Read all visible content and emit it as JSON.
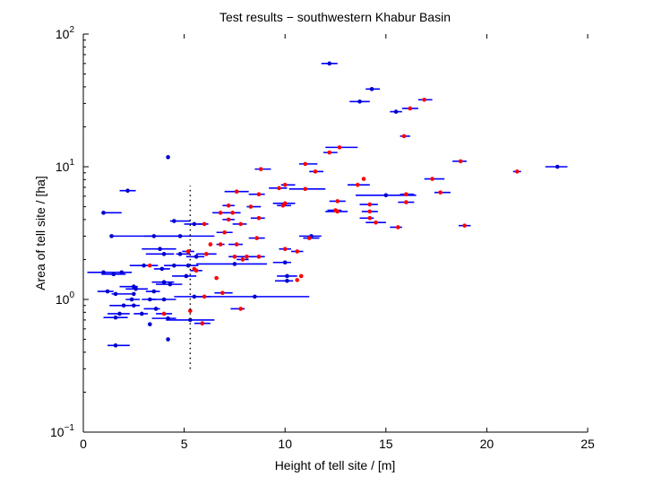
{
  "chart_data": {
    "type": "scatter",
    "title": "Test results − southwestern Khabur Basin",
    "xlabel": "Height of tell site / [m]",
    "ylabel": "Area of tell site / [ha]",
    "xlim": [
      0,
      25
    ],
    "ylim": [
      0.1,
      100
    ],
    "yscale": "log",
    "x_ticks": [
      "0",
      "5",
      "10",
      "15",
      "20",
      "25"
    ],
    "y_ticks": [
      {
        "base": "10",
        "exp": "−1",
        "value": 0.1
      },
      {
        "base": "10",
        "exp": "0",
        "value": 1
      },
      {
        "base": "10",
        "exp": "1",
        "value": 10
      },
      {
        "base": "10",
        "exp": "2",
        "value": 100
      }
    ],
    "grid": false,
    "colors": {
      "error_bar": "#0000ff",
      "blue_point": "#0000cc",
      "red_point": "#ff0000",
      "threshold_line": "#000000"
    },
    "threshold": {
      "x": 5.3,
      "y_range": [
        0.3,
        7.2
      ]
    },
    "series": [
      {
        "color": "blue",
        "points": [
          {
            "x": 12.2,
            "y": 60,
            "xerr": [
              11.8,
              12.6
            ]
          },
          {
            "x": 14.3,
            "y": 38.5,
            "xerr": [
              14.0,
              14.7
            ]
          },
          {
            "x": 13.7,
            "y": 31,
            "xerr": [
              13.2,
              14.2
            ]
          },
          {
            "x": 15.5,
            "y": 26,
            "xerr": [
              15.2,
              15.8
            ]
          },
          {
            "x": 4.2,
            "y": 11.8
          },
          {
            "x": 23.5,
            "y": 10,
            "xerr": [
              22.9,
              24.0
            ]
          },
          {
            "x": 2.2,
            "y": 6.6,
            "xerr": [
              1.8,
              2.6
            ]
          },
          {
            "x": 15.0,
            "y": 6.1,
            "xerr": [
              13.5,
              16.5
            ]
          },
          {
            "x": 1.0,
            "y": 4.5,
            "xerr": [
              0.9,
              1.9
            ]
          },
          {
            "x": 4.5,
            "y": 3.9,
            "xerr": [
              4.3,
              5.3
            ]
          },
          {
            "x": 5.5,
            "y": 3.7,
            "xerr": [
              5.0,
              6.0
            ]
          },
          {
            "x": 1.4,
            "y": 3.0
          },
          {
            "x": 3.5,
            "y": 3.0,
            "xerr": [
              1.4,
              4.9
            ]
          },
          {
            "x": 4.8,
            "y": 3.0,
            "xerr": [
              3.0,
              6.5
            ]
          },
          {
            "x": 11.3,
            "y": 3.0,
            "xerr": [
              10.7,
              11.8
            ]
          },
          {
            "x": 3.8,
            "y": 2.4,
            "xerr": [
              2.9,
              4.6
            ]
          },
          {
            "x": 4.0,
            "y": 2.2,
            "xerr": [
              3.1,
              4.5
            ]
          },
          {
            "x": 5.6,
            "y": 2.1,
            "xerr": [
              5.1,
              6.0
            ]
          },
          {
            "x": 4.8,
            "y": 2.2,
            "xerr": [
              4.6,
              5.3
            ]
          },
          {
            "x": 10.0,
            "y": 1.9,
            "xerr": [
              9.4,
              10.3
            ]
          },
          {
            "x": 3.0,
            "y": 1.8,
            "xerr": [
              2.3,
              3.7
            ]
          },
          {
            "x": 5.2,
            "y": 1.8,
            "xerr": [
              4.5,
              5.7
            ]
          },
          {
            "x": 7.5,
            "y": 1.85,
            "xerr": [
              5.6,
              9.1
            ]
          },
          {
            "x": 1.0,
            "y": 1.6,
            "xerr": [
              0.2,
              1.6
            ]
          },
          {
            "x": 1.9,
            "y": 1.6,
            "xerr": [
              1.6,
              2.4
            ]
          },
          {
            "x": 3.9,
            "y": 1.7,
            "xerr": [
              3.5,
              4.3
            ]
          },
          {
            "x": 4.5,
            "y": 1.8,
            "xerr": [
              4.0,
              4.8
            ]
          },
          {
            "x": 10.1,
            "y": 1.5,
            "xerr": [
              9.6,
              10.6
            ]
          },
          {
            "x": 1.5,
            "y": 1.55,
            "xerr": [
              0.9,
              2.1
            ]
          },
          {
            "x": 5.1,
            "y": 1.5,
            "xerr": [
              4.4,
              5.6
            ]
          },
          {
            "x": 4.0,
            "y": 1.35,
            "xerr": [
              3.4,
              4.5
            ]
          },
          {
            "x": 4.3,
            "y": 1.3,
            "xerr": [
              3.6,
              4.9
            ]
          },
          {
            "x": 2.5,
            "y": 1.25,
            "xerr": [
              1.8,
              2.7
            ]
          },
          {
            "x": 2.6,
            "y": 1.2,
            "xerr": [
              2.1,
              3.2
            ]
          },
          {
            "x": 10.1,
            "y": 1.38,
            "xerr": [
              9.5,
              10.4
            ]
          },
          {
            "x": 1.2,
            "y": 1.15,
            "xerr": [
              0.7,
              1.5
            ]
          },
          {
            "x": 1.6,
            "y": 1.1,
            "xerr": [
              1.4,
              2.4
            ]
          },
          {
            "x": 2.5,
            "y": 1.1
          },
          {
            "x": 3.5,
            "y": 1.15,
            "xerr": [
              3.1,
              3.8
            ]
          },
          {
            "x": 4.0,
            "y": 1.0,
            "xerr": [
              3.3,
              4.6
            ]
          },
          {
            "x": 2.4,
            "y": 1.0,
            "xerr": [
              2.1,
              2.8
            ]
          },
          {
            "x": 3.3,
            "y": 1.0,
            "xerr": [
              2.9,
              3.6
            ]
          },
          {
            "x": 5.5,
            "y": 1.05,
            "xerr": [
              4.5,
              6.0
            ]
          },
          {
            "x": 8.5,
            "y": 1.05,
            "xerr": [
              5.6,
              11.2
            ]
          },
          {
            "x": 2.0,
            "y": 0.9,
            "xerr": [
              1.3,
              2.3
            ]
          },
          {
            "x": 2.5,
            "y": 0.9,
            "xerr": [
              2.3,
              2.8
            ]
          },
          {
            "x": 3.6,
            "y": 0.85,
            "xerr": [
              3.0,
              3.8
            ]
          },
          {
            "x": 1.8,
            "y": 0.78,
            "xerr": [
              1.2,
              2.3
            ]
          },
          {
            "x": 2.9,
            "y": 0.78,
            "xerr": [
              2.5,
              3.2
            ]
          },
          {
            "x": 1.6,
            "y": 0.73,
            "xerr": [
              1.0,
              2.2
            ]
          },
          {
            "x": 4.2,
            "y": 0.72,
            "xerr": [
              3.4,
              4.6
            ]
          },
          {
            "x": 5.3,
            "y": 0.7,
            "xerr": [
              4.1,
              6.5
            ]
          },
          {
            "x": 3.3,
            "y": 0.65
          },
          {
            "x": 5.9,
            "y": 0.66,
            "xerr": [
              5.5,
              6.3
            ]
          },
          {
            "x": 4.2,
            "y": 0.5
          },
          {
            "x": 1.6,
            "y": 0.45,
            "xerr": [
              1.2,
              2.3
            ]
          }
        ]
      },
      {
        "color": "red",
        "points": [
          {
            "x": 16.9,
            "y": 32,
            "xerr": [
              16.6,
              17.3
            ]
          },
          {
            "x": 16.2,
            "y": 27.5,
            "xerr": [
              15.8,
              16.6
            ]
          },
          {
            "x": 15.9,
            "y": 17,
            "xerr": [
              15.7,
              16.2
            ]
          },
          {
            "x": 12.7,
            "y": 14,
            "xerr": [
              12.0,
              13.6
            ]
          },
          {
            "x": 12.2,
            "y": 12.8,
            "xerr": [
              11.9,
              12.6
            ]
          },
          {
            "x": 18.7,
            "y": 11.0,
            "xerr": [
              18.3,
              19.0
            ]
          },
          {
            "x": 11.0,
            "y": 10.5,
            "xerr": [
              10.7,
              11.6
            ]
          },
          {
            "x": 8.8,
            "y": 9.6,
            "xerr": [
              8.5,
              9.3
            ]
          },
          {
            "x": 11.5,
            "y": 9.2,
            "xerr": [
              11.2,
              11.9
            ]
          },
          {
            "x": 21.5,
            "y": 9.2,
            "xerr": [
              21.3,
              21.7
            ]
          },
          {
            "x": 13.9,
            "y": 8.1
          },
          {
            "x": 17.3,
            "y": 8.1,
            "xerr": [
              16.9,
              17.9
            ]
          },
          {
            "x": 10.0,
            "y": 7.3,
            "xerr": [
              9.8,
              10.5
            ]
          },
          {
            "x": 13.6,
            "y": 7.3,
            "xerr": [
              13.1,
              14.2
            ]
          },
          {
            "x": 11.0,
            "y": 6.8,
            "xerr": [
              10.2,
              12.0
            ]
          },
          {
            "x": 7.6,
            "y": 6.5,
            "xerr": [
              7.0,
              8.2
            ]
          },
          {
            "x": 9.7,
            "y": 6.9,
            "xerr": [
              9.2,
              10.1
            ]
          },
          {
            "x": 8.7,
            "y": 6.2,
            "xerr": [
              8.2,
              9.0
            ]
          },
          {
            "x": 17.7,
            "y": 6.4,
            "xerr": [
              17.4,
              18.2
            ]
          },
          {
            "x": 16.0,
            "y": 6.2,
            "xerr": [
              15.7,
              16.4
            ]
          },
          {
            "x": 12.6,
            "y": 5.5,
            "xerr": [
              12.2,
              13.0
            ]
          },
          {
            "x": 10.0,
            "y": 5.3,
            "xerr": [
              9.4,
              10.5
            ]
          },
          {
            "x": 9.9,
            "y": 5.1,
            "xerr": [
              9.6,
              10.3
            ]
          },
          {
            "x": 14.2,
            "y": 5.2,
            "xerr": [
              13.7,
              14.6
            ]
          },
          {
            "x": 16.0,
            "y": 5.4,
            "xerr": [
              15.6,
              16.4
            ]
          },
          {
            "x": 7.2,
            "y": 5.1,
            "xerr": [
              6.9,
              7.5
            ]
          },
          {
            "x": 8.3,
            "y": 5.0,
            "xerr": [
              8.1,
              8.8
            ]
          },
          {
            "x": 12.6,
            "y": 4.6,
            "xerr": [
              12.0,
              13.1
            ]
          },
          {
            "x": 6.8,
            "y": 4.5,
            "xerr": [
              6.4,
              7.1
            ]
          },
          {
            "x": 7.4,
            "y": 4.5,
            "xerr": [
              7.0,
              7.8
            ]
          },
          {
            "x": 12.5,
            "y": 4.7,
            "xerr": [
              12.1,
              12.8
            ]
          },
          {
            "x": 14.2,
            "y": 4.6,
            "xerr": [
              13.8,
              14.6
            ]
          },
          {
            "x": 14.2,
            "y": 4.1,
            "xerr": [
              13.7,
              14.4
            ]
          },
          {
            "x": 8.7,
            "y": 4.1,
            "xerr": [
              8.3,
              9.0
            ]
          },
          {
            "x": 7.2,
            "y": 4.0,
            "xerr": [
              6.9,
              7.5
            ]
          },
          {
            "x": 14.5,
            "y": 3.8,
            "xerr": [
              14.0,
              15.0
            ]
          },
          {
            "x": 6.0,
            "y": 3.7,
            "xerr": [
              5.7,
              6.2
            ]
          },
          {
            "x": 7.8,
            "y": 3.7,
            "xerr": [
              7.4,
              8.1
            ]
          },
          {
            "x": 15.6,
            "y": 3.5,
            "xerr": [
              15.2,
              15.8
            ]
          },
          {
            "x": 18.9,
            "y": 3.6,
            "xerr": [
              18.6,
              19.2
            ]
          },
          {
            "x": 7.0,
            "y": 3.2,
            "xerr": [
              6.6,
              7.4
            ]
          },
          {
            "x": 6.3,
            "y": 2.6
          },
          {
            "x": 6.8,
            "y": 2.6,
            "xerr": [
              6.6,
              7.0
            ]
          },
          {
            "x": 7.6,
            "y": 2.6,
            "xerr": [
              7.2,
              7.9
            ]
          },
          {
            "x": 8.6,
            "y": 2.9,
            "xerr": [
              8.2,
              9.0
            ]
          },
          {
            "x": 11.2,
            "y": 2.9,
            "xerr": [
              10.9,
              11.7
            ]
          },
          {
            "x": 10.0,
            "y": 2.4,
            "xerr": [
              9.7,
              10.3
            ]
          },
          {
            "x": 10.6,
            "y": 2.3,
            "xerr": [
              10.3,
              10.9
            ]
          },
          {
            "x": 6.1,
            "y": 2.2,
            "xerr": [
              5.6,
              6.6
            ]
          },
          {
            "x": 7.5,
            "y": 2.1,
            "xerr": [
              7.2,
              7.9
            ]
          },
          {
            "x": 8.1,
            "y": 2.1,
            "xerr": [
              7.8,
              8.4
            ]
          },
          {
            "x": 8.7,
            "y": 2.1,
            "xerr": [
              8.3,
              9.0
            ]
          },
          {
            "x": 7.9,
            "y": 2.0,
            "xerr": [
              7.6,
              8.2
            ]
          },
          {
            "x": 5.2,
            "y": 2.3,
            "xerr": [
              4.9,
              5.5
            ]
          },
          {
            "x": 5.5,
            "y": 1.7
          },
          {
            "x": 5.6,
            "y": 1.65,
            "xerr": [
              5.3,
              5.9
            ]
          },
          {
            "x": 3.3,
            "y": 1.8
          },
          {
            "x": 6.6,
            "y": 1.45
          },
          {
            "x": 10.8,
            "y": 1.5
          },
          {
            "x": 10.6,
            "y": 1.4
          },
          {
            "x": 6.9,
            "y": 1.12,
            "xerr": [
              6.5,
              7.4
            ]
          },
          {
            "x": 6.0,
            "y": 1.05,
            "xerr": [
              5.6,
              6.3
            ]
          },
          {
            "x": 7.8,
            "y": 0.85,
            "xerr": [
              7.3,
              8.0
            ]
          },
          {
            "x": 5.3,
            "y": 0.82
          },
          {
            "x": 4.0,
            "y": 0.78,
            "xerr": [
              3.6,
              4.4
            ]
          },
          {
            "x": 5.9,
            "y": 0.66
          }
        ]
      }
    ]
  }
}
